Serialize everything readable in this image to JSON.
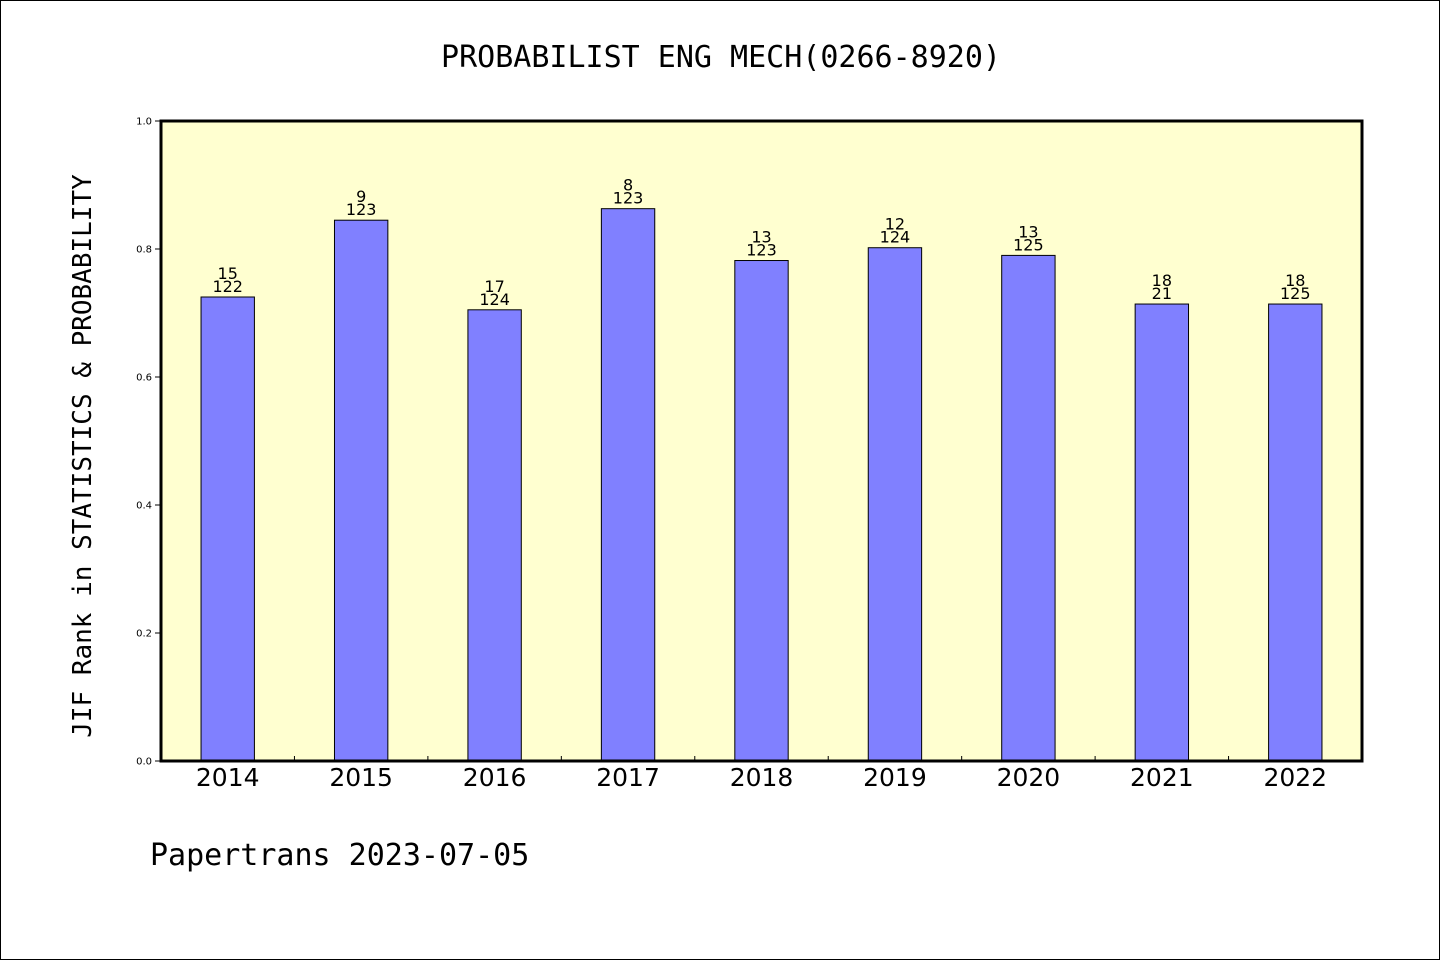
{
  "chart_data": {
    "type": "bar",
    "title": "PROBABILIST ENG MECH(0266-8920)",
    "xlabel": "",
    "ylabel": "JIF Rank in STATISTICS & PROBABILITY",
    "ylim": [
      0,
      1.0
    ],
    "yticks": [
      "0.0",
      "0.2",
      "0.4",
      "0.6",
      "0.8",
      "1.0"
    ],
    "categories": [
      "2014",
      "2015",
      "2016",
      "2017",
      "2018",
      "2019",
      "2020",
      "2021",
      "2022"
    ],
    "values": [
      0.725,
      0.845,
      0.705,
      0.863,
      0.782,
      0.802,
      0.79,
      0.714,
      0.714
    ],
    "rank_labels": [
      "15",
      "9",
      "17",
      "8",
      "13",
      "12",
      "13",
      "18",
      "18"
    ],
    "total_labels": [
      "122",
      "123",
      "124",
      "123",
      "123",
      "124",
      "125",
      "21",
      "125"
    ],
    "grid": false,
    "legend": "none",
    "colors": {
      "plot_bg": "#FFFFD0",
      "bar": "#8080FF"
    }
  },
  "footer": "Papertrans 2023-07-05"
}
